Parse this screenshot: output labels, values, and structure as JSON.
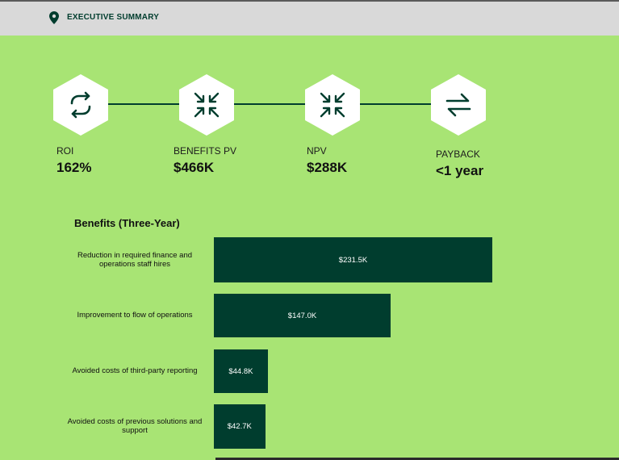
{
  "header": {
    "title": "EXECUTIVE SUMMARY",
    "icon": "map-pin-icon"
  },
  "colors": {
    "background": "#a8e474",
    "header_bg": "#d9d9d9",
    "accent": "#003d2e",
    "hex_fill": "#ffffff"
  },
  "metrics": [
    {
      "label": "ROI",
      "value": "162%",
      "icon": "refresh-arrows-icon"
    },
    {
      "label": "BENEFITS PV",
      "value": "$466K",
      "icon": "collapse-arrows-icon"
    },
    {
      "label": "NPV",
      "value": "$288K",
      "icon": "collapse-arrows-icon"
    },
    {
      "label": "PAYBACK",
      "value": "<1 year",
      "icon": "swap-arrows-icon"
    }
  ],
  "chart_data": {
    "type": "bar",
    "orientation": "horizontal",
    "title": "Benefits (Three-Year)",
    "categories": [
      "Reduction in required finance and operations staff hires",
      "Improvement to flow of operations",
      "Avoided costs of third-party reporting",
      "Avoided costs of previous solutions and support"
    ],
    "values": [
      231.5,
      147.0,
      44.8,
      42.7
    ],
    "value_labels": [
      "$231.5K",
      "$147.0K",
      "$44.8K",
      "$42.7K"
    ],
    "unit": "$K",
    "xlim": [
      0,
      231.5
    ],
    "grid": false
  }
}
